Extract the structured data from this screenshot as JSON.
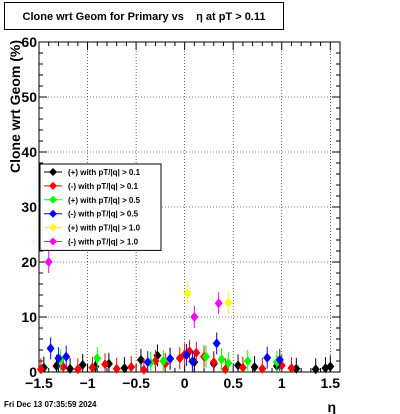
{
  "title": "Clone wrt Geom for Primary vs    η at pT > 0.11",
  "footer": "Fri Dec 13 07:35:59 2024",
  "chart_data": {
    "type": "scatter",
    "title": "Clone wrt Geom for Primary vs    η at pT > 0.11",
    "xlabel": "η",
    "ylabel": "Clone wrt Geom (%)",
    "xlim": [
      -1.5,
      1.6
    ],
    "ylim": [
      0,
      60
    ],
    "xticks": [
      -1.5,
      -1,
      -0.5,
      0,
      0.5,
      1,
      1.5
    ],
    "yticks": [
      0,
      10,
      20,
      30,
      40,
      50,
      60
    ],
    "xtick_labels": [
      "−1.5",
      "−1",
      "−0.5",
      "0",
      "0.5",
      "1",
      "1.5"
    ],
    "ytick_labels": [
      "0",
      "10",
      "20",
      "30",
      "40",
      "50",
      "60"
    ],
    "grid": true,
    "legend_position": "left-middle",
    "series": [
      {
        "name": "(+) with pT/|q| > 0.1",
        "color": "#000000",
        "x": [
          -1.45,
          -1.32,
          -1.18,
          -1.05,
          -0.92,
          -0.78,
          -0.62,
          -0.45,
          -0.28,
          -0.15,
          0.1,
          0.3,
          0.55,
          0.72,
          0.95,
          1.15,
          1.35,
          1.45,
          1.5
        ],
        "y": [
          0.8,
          1.1,
          0.6,
          1.3,
          1.0,
          1.5,
          0.7,
          2.2,
          3.0,
          2.4,
          1.8,
          1.5,
          1.2,
          0.9,
          1.1,
          0.6,
          0.5,
          0.7,
          1.0
        ]
      },
      {
        "name": "(-) with pT/|q| > 0.1",
        "color": "#ff0000",
        "x": [
          -1.48,
          -1.25,
          -1.1,
          -0.95,
          -0.82,
          -0.7,
          -0.55,
          -0.42,
          -0.3,
          -0.2,
          -0.05,
          0.0,
          0.05,
          0.12,
          0.2,
          0.3,
          0.42,
          0.6,
          0.8,
          1.0,
          1.1
        ],
        "y": [
          0.5,
          0.9,
          0.5,
          0.8,
          1.4,
          0.6,
          0.9,
          0.4,
          2.0,
          1.5,
          2.5,
          3.2,
          3.8,
          3.5,
          2.8,
          1.8,
          0.5,
          0.8,
          0.6,
          1.2,
          0.7
        ]
      },
      {
        "name": "(+) with pT/|q| > 0.5",
        "color": "#00ff00",
        "x": [
          -1.28,
          -0.9,
          -0.35,
          -0.22,
          0.22,
          0.38,
          0.45,
          0.65,
          0.95
        ],
        "y": [
          2.2,
          2.5,
          1.7,
          2.0,
          2.8,
          2.3,
          1.6,
          2.0,
          1.8
        ]
      },
      {
        "name": "(-) with pT/|q| > 0.5",
        "color": "#0000ff",
        "x": [
          -1.38,
          -1.3,
          -1.22,
          -0.38,
          -0.15,
          0.02,
          0.08,
          0.33,
          0.85,
          0.98
        ],
        "y": [
          4.3,
          2.5,
          2.8,
          1.8,
          2.4,
          3.1,
          1.9,
          5.2,
          2.6,
          2.2
        ]
      },
      {
        "name": "(+) with pT/|q| > 1.0",
        "color": "#ffff00",
        "x": [
          0.03,
          0.45
        ],
        "y": [
          14.3,
          12.6
        ]
      },
      {
        "name": "(-) with pT/|q| > 1.0",
        "color": "#ff00ff",
        "x": [
          -1.4,
          0.1,
          0.35
        ],
        "y": [
          20.0,
          10.0,
          12.5
        ]
      }
    ]
  }
}
